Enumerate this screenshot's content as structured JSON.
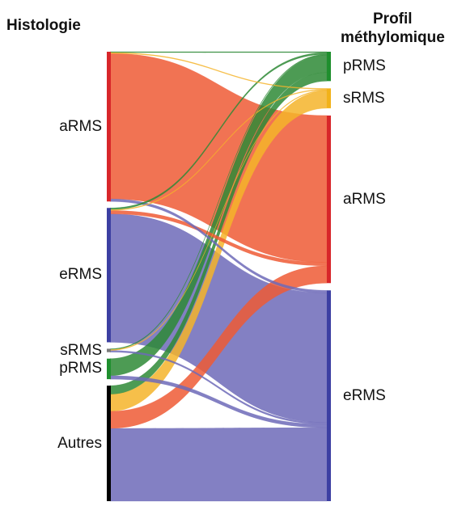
{
  "headers": {
    "left": "Histologie",
    "right_line1": "Profil",
    "right_line2": "méthylomique"
  },
  "left_nodes": [
    {
      "id": "aRMS",
      "label": "aRMS",
      "color": "#d8262a"
    },
    {
      "id": "eRMS",
      "label": "eRMS",
      "color": "#3c3fa2"
    },
    {
      "id": "sRMS",
      "label": "sRMS",
      "color": "#7a7a7a"
    },
    {
      "id": "pRMS",
      "label": "pRMS",
      "color": "#1f8f2e"
    },
    {
      "id": "Autres",
      "label": "Autres",
      "color": "#000000"
    }
  ],
  "right_nodes": [
    {
      "id": "pRMS",
      "label": "pRMS",
      "color": "#1f8f2e"
    },
    {
      "id": "sRMS",
      "label": "sRMS",
      "color": "#f2b21a"
    },
    {
      "id": "aRMS",
      "label": "aRMS",
      "color": "#d8262a"
    },
    {
      "id": "eRMS",
      "label": "eRMS",
      "color": "#3c3fa2"
    }
  ],
  "flow_colors": {
    "pRMS": "#2e8a36",
    "sRMS": "#f5b42a",
    "aRMS": "#ee5a35",
    "eRMS": "#6d6ab8"
  },
  "flows": [
    {
      "from": "aRMS",
      "to": "pRMS",
      "value": 1
    },
    {
      "from": "aRMS",
      "to": "sRMS",
      "value": 1
    },
    {
      "from": "aRMS",
      "to": "aRMS",
      "value": 170
    },
    {
      "from": "aRMS",
      "to": "eRMS",
      "value": 3
    },
    {
      "from": "eRMS",
      "to": "pRMS",
      "value": 2
    },
    {
      "from": "eRMS",
      "to": "sRMS",
      "value": 1
    },
    {
      "from": "eRMS",
      "to": "aRMS",
      "value": 4
    },
    {
      "from": "eRMS",
      "to": "eRMS",
      "value": 150
    },
    {
      "from": "sRMS",
      "to": "pRMS",
      "value": 1
    },
    {
      "from": "sRMS",
      "to": "sRMS",
      "value": 1
    },
    {
      "from": "sRMS",
      "to": "eRMS",
      "value": 2
    },
    {
      "from": "pRMS",
      "to": "pRMS",
      "value": 20
    },
    {
      "from": "pRMS",
      "to": "eRMS",
      "value": 4
    },
    {
      "from": "Autres",
      "to": "pRMS",
      "value": 10
    },
    {
      "from": "Autres",
      "to": "sRMS",
      "value": 20
    },
    {
      "from": "Autres",
      "to": "aRMS",
      "value": 20
    },
    {
      "from": "Autres",
      "to": "eRMS",
      "value": 85
    }
  ]
}
